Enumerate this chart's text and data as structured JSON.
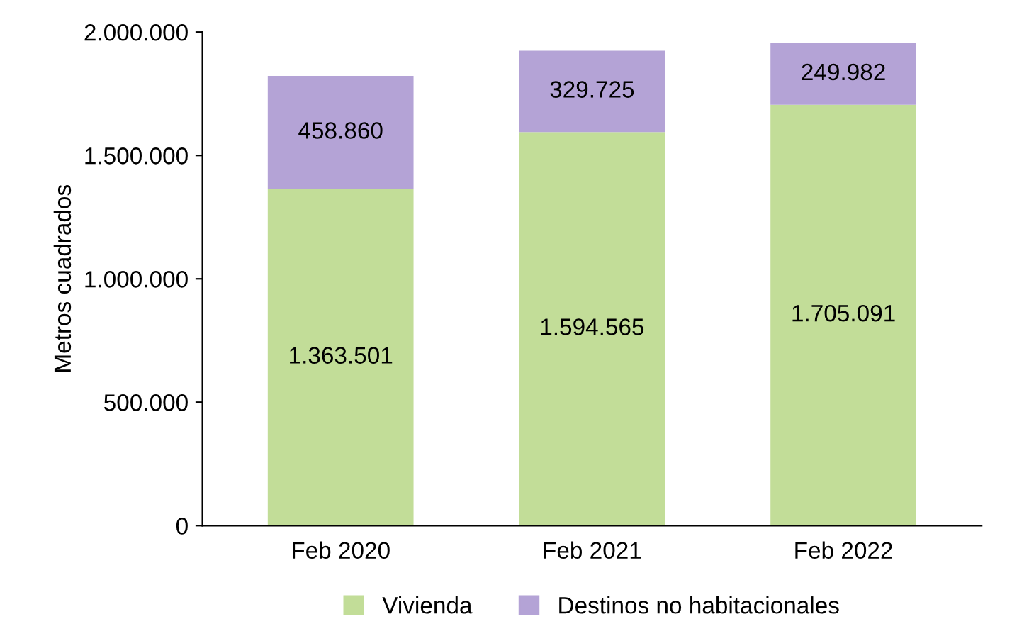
{
  "chart_data": {
    "type": "bar",
    "stacked": true,
    "ylabel": "Metros cuadrados",
    "categories": [
      "Feb 2020",
      "Feb 2021",
      "Feb 2022"
    ],
    "series": [
      {
        "name": "Vivienda",
        "color": "#c2dd98",
        "values": [
          1363501,
          1594565,
          1705091
        ],
        "value_labels": [
          "1.363.501",
          "1.594.565",
          "1.705.091"
        ]
      },
      {
        "name": "Destinos no habitacionales",
        "color": "#b4a3d6",
        "values": [
          458860,
          329725,
          249982
        ],
        "value_labels": [
          "458.860",
          "329.725",
          "249.982"
        ]
      }
    ],
    "ylim": [
      0,
      2000000
    ],
    "yticks": [
      {
        "value": 0,
        "label": "0"
      },
      {
        "value": 500000,
        "label": "500.000"
      },
      {
        "value": 1000000,
        "label": "1.000.000"
      },
      {
        "value": 1500000,
        "label": "1.500.000"
      },
      {
        "value": 2000000,
        "label": "2.000.000"
      }
    ],
    "grid": false,
    "legend": "bottom"
  }
}
